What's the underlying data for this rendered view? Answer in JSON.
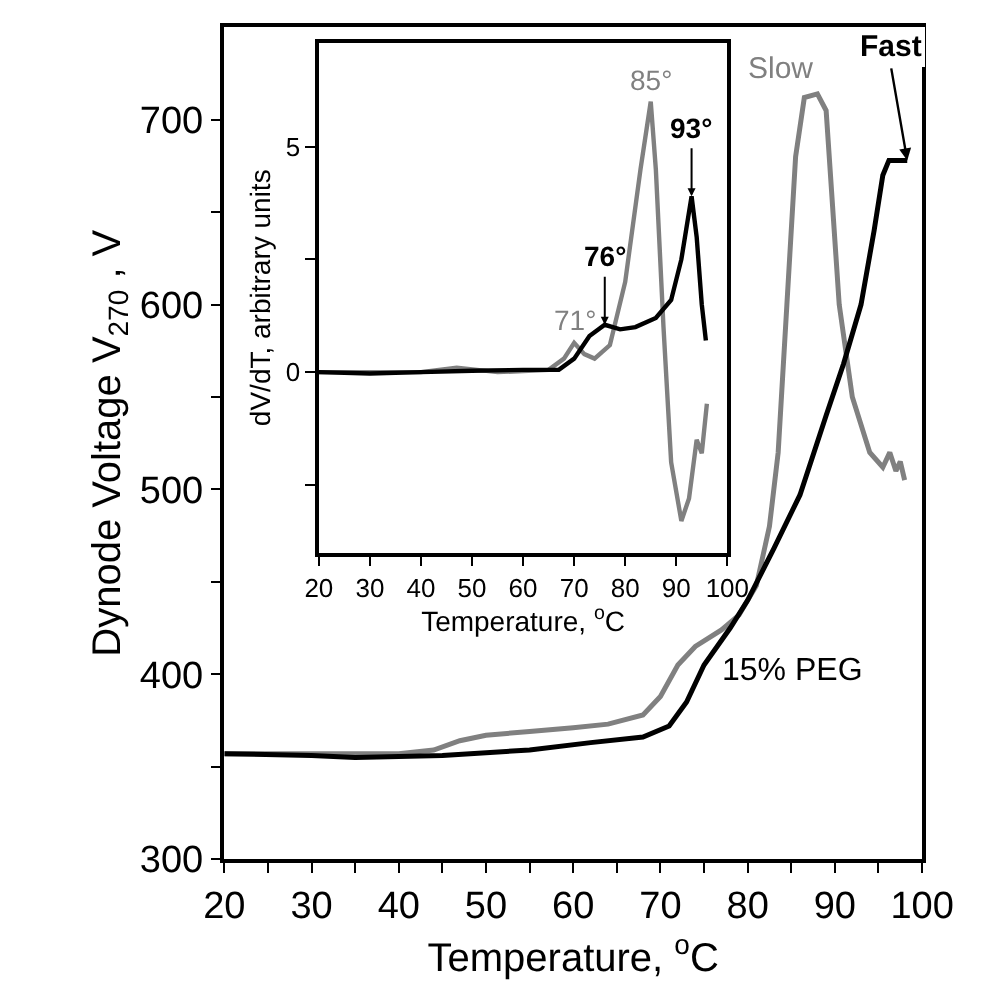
{
  "chart_data": [
    {
      "type": "line",
      "xlabel": "Temperature, $^{o}$C",
      "ylabel": "Dynode Voltage V$_{270}$ , V",
      "xlim": [
        20,
        100
      ],
      "ylim": [
        300,
        750
      ],
      "xticks": [
        20,
        {
          "value": 25,
          "label": null
        },
        30,
        {
          "value": 35,
          "label": null
        },
        40,
        {
          "value": 45,
          "label": null
        },
        50,
        {
          "value": 55,
          "label": null
        },
        60,
        {
          "value": 65,
          "label": null
        },
        70,
        {
          "value": 75,
          "label": null
        },
        80,
        {
          "value": 85,
          "label": null
        },
        90,
        {
          "value": 95,
          "label": null
        },
        100
      ],
      "yticks": [
        300,
        {
          "value": 350,
          "label": null
        },
        400,
        {
          "value": 450,
          "label": null
        },
        500,
        {
          "value": 550,
          "label": null
        },
        600,
        {
          "value": 650,
          "label": null
        },
        700
      ],
      "legend": false,
      "marker": "none",
      "line_style": "solid",
      "series": [
        {
          "name": "Slow",
          "color": "#808080",
          "x": [
            20,
            30,
            40,
            44,
            47,
            50,
            55,
            60,
            64,
            68,
            70,
            72,
            74,
            77,
            79,
            81,
            82.5,
            83.5,
            84.5,
            85.5,
            86.5,
            88,
            89,
            90.5,
            92,
            94,
            95.5,
            96.3,
            97,
            97.5,
            98
          ],
          "values": [
            357,
            357,
            357,
            359,
            364,
            367,
            369,
            371,
            373,
            378,
            388,
            405,
            415,
            424,
            432,
            448,
            480,
            520,
            600,
            680,
            712,
            714,
            705,
            600,
            550,
            520,
            512,
            520,
            510,
            515,
            505
          ]
        },
        {
          "name": "Fast",
          "color": "#000000",
          "x": [
            20,
            30,
            35,
            45,
            55,
            62,
            68,
            71,
            73,
            75,
            78,
            80,
            83,
            86,
            89,
            91,
            93,
            94.5,
            95.5,
            96.2,
            98.3
          ],
          "values": [
            357,
            356,
            355,
            356,
            359,
            363,
            366,
            372,
            385,
            405,
            425,
            440,
            468,
            497,
            540,
            568,
            600,
            640,
            670,
            678,
            678
          ]
        }
      ],
      "annotations": [
        "15% PEG"
      ]
    },
    {
      "type": "line",
      "xlabel": "Temperature, $^{o}$C",
      "ylabel": "dV/dT, arbitrary units",
      "xlim": [
        20,
        100
      ],
      "ylim": [
        -4,
        7.3
      ],
      "xticks": [
        20,
        30,
        40,
        50,
        60,
        70,
        80,
        90,
        100
      ],
      "yticks": [
        {
          "value": -2.5,
          "label": null
        },
        0,
        {
          "value": 2.5,
          "label": null
        },
        5
      ],
      "legend": false,
      "marker": "none",
      "line_style": "solid",
      "series": [
        {
          "color": "#808080",
          "x": [
            20,
            40,
            47,
            55,
            65,
            68,
            70,
            72,
            74,
            77,
            80,
            83,
            85,
            86,
            87.5,
            89,
            91,
            92.5,
            94,
            95,
            96
          ],
          "values": [
            0,
            0,
            0.1,
            0,
            0.05,
            0.3,
            0.65,
            0.4,
            0.3,
            0.6,
            2.0,
            4.5,
            6.0,
            4.5,
            1.0,
            -2.0,
            -3.3,
            -2.8,
            -1.5,
            -1.8,
            -0.7
          ]
        },
        {
          "color": "#000000",
          "x": [
            20,
            30,
            40,
            50,
            60,
            67,
            70,
            73,
            76,
            79,
            82,
            86,
            89,
            91,
            93,
            94,
            95,
            95.8
          ],
          "values": [
            0,
            -0.03,
            0,
            0.03,
            0.05,
            0.05,
            0.3,
            0.8,
            1.05,
            0.95,
            1.0,
            1.2,
            1.6,
            2.5,
            3.9,
            3.0,
            1.5,
            0.7
          ]
        }
      ],
      "annotations": [
        {
          "text": "71°",
          "x": 70,
          "y": 0.65
        },
        {
          "text": "76°",
          "x": 76,
          "y": 1.05
        },
        {
          "text": "85°",
          "x": 85,
          "y": 6.0
        },
        {
          "text": "93°",
          "x": 93,
          "y": 3.9
        }
      ]
    }
  ]
}
